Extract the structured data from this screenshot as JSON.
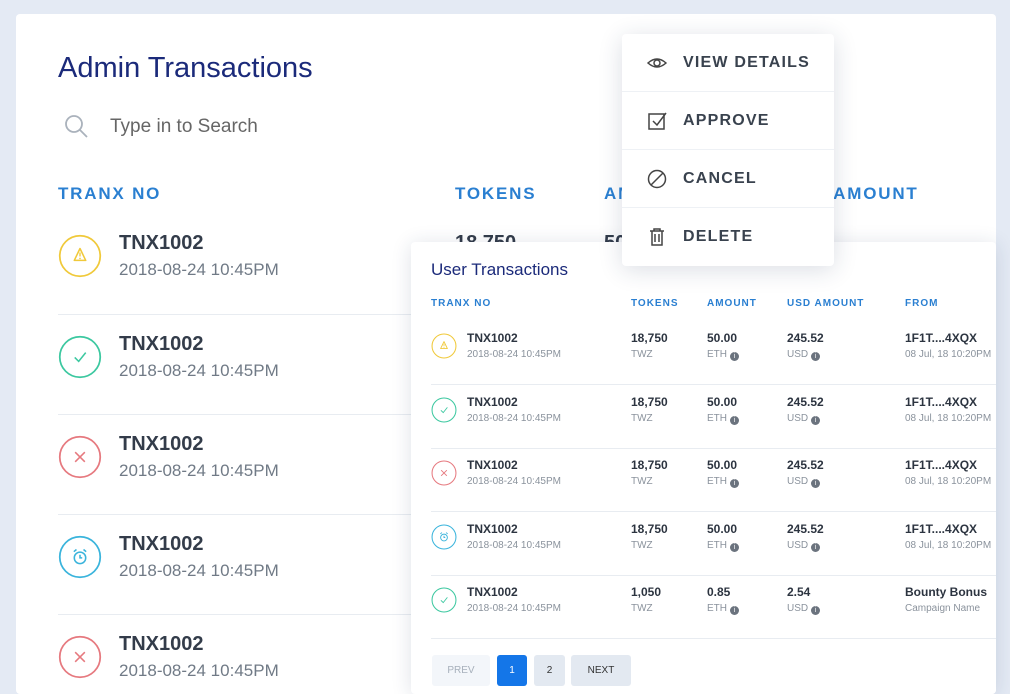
{
  "admin": {
    "title": "Admin Transactions",
    "search_placeholder": "Type in to Search",
    "headers": {
      "tranx": "TRANX NO",
      "tokens": "TOKENS",
      "amount": "AMOUNT",
      "usd": "USD AMOUNT"
    },
    "rows": [
      {
        "status": "warning",
        "no": "TNX1002",
        "date": "2018-08-24 10:45PM",
        "tokens": "18,750",
        "amount": "50.00"
      },
      {
        "status": "success",
        "no": "TNX1002",
        "date": "2018-08-24 10:45PM"
      },
      {
        "status": "canceled",
        "no": "TNX1002",
        "date": "2018-08-24 10:45PM"
      },
      {
        "status": "pending",
        "no": "TNX1002",
        "date": "2018-08-24 10:45PM"
      },
      {
        "status": "canceled",
        "no": "TNX1002",
        "date": "2018-08-24 10:45PM"
      }
    ]
  },
  "menu": {
    "items": [
      {
        "icon": "eye-icon",
        "label": "VIEW DETAILS"
      },
      {
        "icon": "checkbox-icon",
        "label": "APPROVE"
      },
      {
        "icon": "ban-icon",
        "label": "CANCEL"
      },
      {
        "icon": "trash-icon",
        "label": "DELETE"
      }
    ]
  },
  "user": {
    "title": "User Transactions",
    "headers": {
      "tranx": "TRANX NO",
      "tokens": "TOKENS",
      "amount": "AMOUNT",
      "usd": "USD AMOUNT",
      "from": "FROM"
    },
    "rows": [
      {
        "status": "warning",
        "no": "TNX1002",
        "date": "2018-08-24 10:45PM",
        "tokens": "18,750",
        "token_unit": "TWZ",
        "amount": "50.00",
        "amount_unit": "ETH",
        "usd": "245.52",
        "usd_unit": "USD",
        "from": "1F1T....4XQX",
        "from_sub": "08 Jul, 18 10:20PM"
      },
      {
        "status": "success",
        "no": "TNX1002",
        "date": "2018-08-24 10:45PM",
        "tokens": "18,750",
        "token_unit": "TWZ",
        "amount": "50.00",
        "amount_unit": "ETH",
        "usd": "245.52",
        "usd_unit": "USD",
        "from": "1F1T....4XQX",
        "from_sub": "08 Jul, 18 10:20PM"
      },
      {
        "status": "canceled",
        "no": "TNX1002",
        "date": "2018-08-24 10:45PM",
        "tokens": "18,750",
        "token_unit": "TWZ",
        "amount": "50.00",
        "amount_unit": "ETH",
        "usd": "245.52",
        "usd_unit": "USD",
        "from": "1F1T....4XQX",
        "from_sub": "08 Jul, 18 10:20PM"
      },
      {
        "status": "pending",
        "no": "TNX1002",
        "date": "2018-08-24 10:45PM",
        "tokens": "18,750",
        "token_unit": "TWZ",
        "amount": "50.00",
        "amount_unit": "ETH",
        "usd": "245.52",
        "usd_unit": "USD",
        "from": "1F1T....4XQX",
        "from_sub": "08 Jul, 18 10:20PM"
      },
      {
        "status": "success",
        "no": "TNX1002",
        "date": "2018-08-24 10:45PM",
        "tokens": "1,050",
        "token_unit": "TWZ",
        "amount": "0.85",
        "amount_unit": "ETH",
        "usd": "2.54",
        "usd_unit": "USD",
        "from": "Bounty Bonus",
        "from_sub": "Campaign Name"
      }
    ],
    "pagination": {
      "prev": "PREV",
      "pages": [
        "1",
        "2"
      ],
      "current": "1",
      "next": "NEXT"
    }
  },
  "colors": {
    "warning": "#f0c93a",
    "success": "#3cc8a0",
    "canceled": "#e6797f",
    "pending": "#3ab4dc",
    "accent": "#2a7fd1",
    "title": "#1b2a7a",
    "active_page": "#1476e8"
  }
}
